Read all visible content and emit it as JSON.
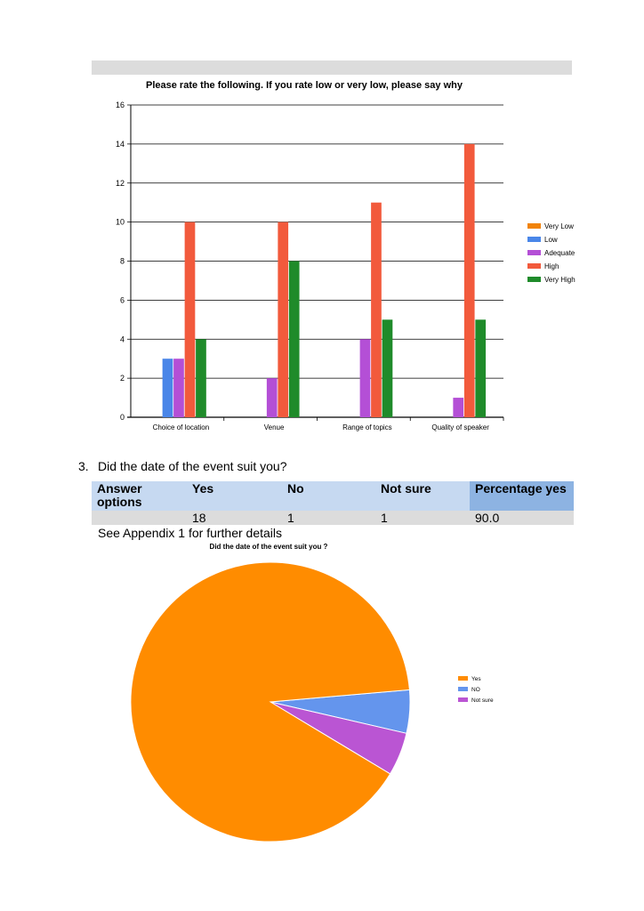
{
  "chart_data": [
    {
      "type": "bar",
      "title": "Please rate the following. If you rate low or very low, please say why",
      "categories": [
        "Choice of location",
        "Venue",
        "Range of topics",
        "Quality of speaker"
      ],
      "ylim": [
        0,
        16
      ],
      "yticks": [
        0,
        2,
        4,
        6,
        8,
        10,
        12,
        14,
        16
      ],
      "grid": true,
      "legend_position": "right",
      "series": [
        {
          "name": "Very Low",
          "color": "#f18308",
          "values": [
            0,
            0,
            0,
            0
          ]
        },
        {
          "name": "Low",
          "color": "#4a86e8",
          "values": [
            3,
            0,
            0,
            0
          ]
        },
        {
          "name": "Adequate",
          "color": "#b44fd6",
          "values": [
            3,
            2,
            4,
            1
          ]
        },
        {
          "name": "High",
          "color": "#f25a3c",
          "values": [
            10,
            10,
            11,
            14
          ]
        },
        {
          "name": "Very High",
          "color": "#1f8b2a",
          "values": [
            4,
            8,
            5,
            5
          ]
        }
      ]
    },
    {
      "type": "pie",
      "title": "Did the date of the event suit you ?",
      "legend_position": "right",
      "slices": [
        {
          "label": "Yes",
          "value": 18,
          "color": "#ff8c00"
        },
        {
          "label": "NO",
          "value": 1,
          "color": "#6495ed"
        },
        {
          "label": "Not sure",
          "value": 1,
          "color": "#ba55d3"
        }
      ]
    }
  ],
  "question": {
    "number": "3.",
    "text": "Did the date of the event suit you?"
  },
  "answer_table": {
    "headers": [
      "Answer options",
      "Yes",
      "No",
      "Not sure",
      "Percentage yes"
    ],
    "row": [
      "",
      "18",
      "1",
      "1",
      "90.0"
    ]
  },
  "appendix_note": "See Appendix 1 for further details"
}
